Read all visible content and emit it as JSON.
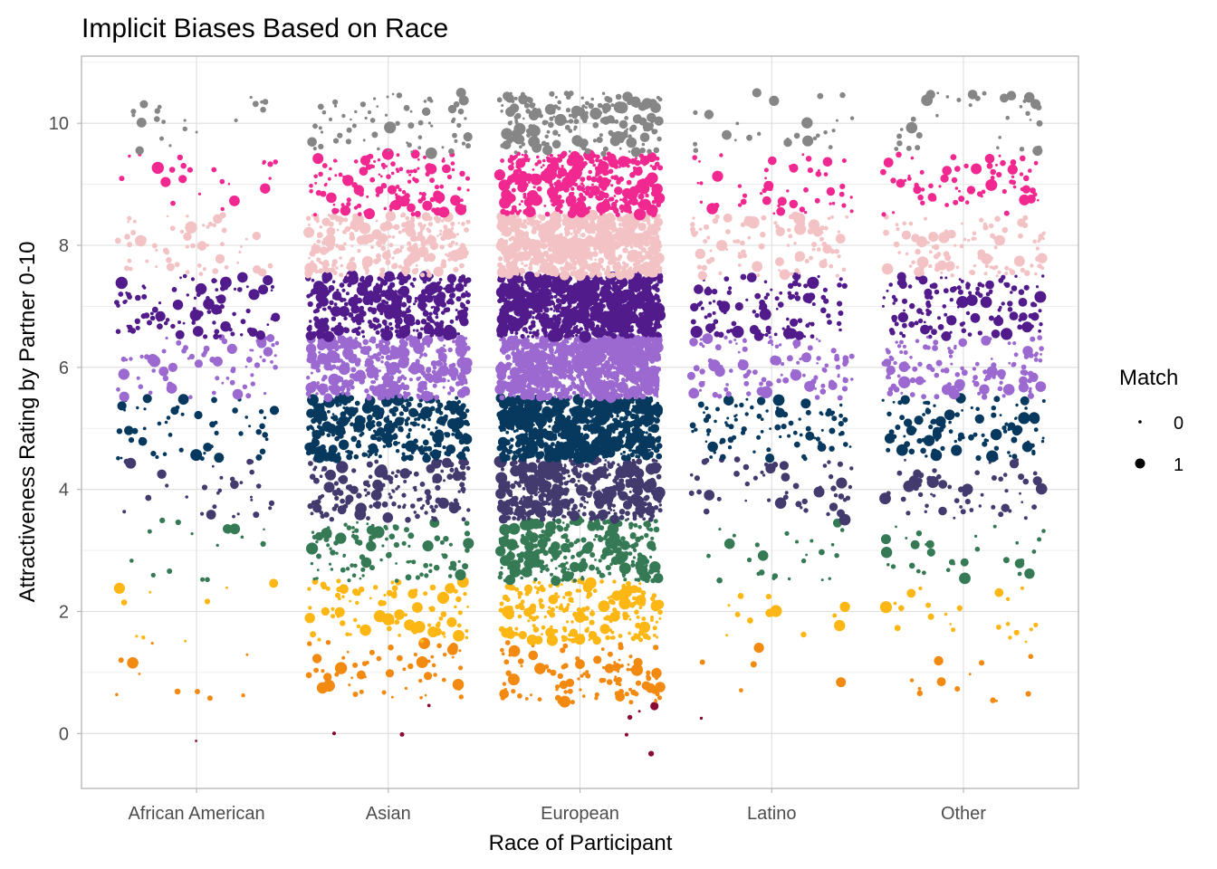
{
  "chart_data": {
    "type": "scatter",
    "title": "Implicit Biases Based on Race",
    "xlabel": "Race of Participant",
    "ylabel": "Attractiveness Rating by Partner 0-10",
    "categories": [
      "African American",
      "Asian",
      "European",
      "Latino",
      "Other"
    ],
    "y_ticks": [
      0,
      2,
      4,
      6,
      8,
      10
    ],
    "ylim": [
      -0.9,
      11.1
    ],
    "jitter": {
      "x_width": 0.42,
      "y_half_height": 0.5
    },
    "grid": true,
    "legend": {
      "title": "Match",
      "position": "right",
      "entries": [
        {
          "label": "0",
          "value": 0
        },
        {
          "label": "1",
          "value": 1
        }
      ]
    },
    "rating_colors": {
      "0": "#8b0a32",
      "1": "#f28a12",
      "2": "#fdb714",
      "3": "#357a55",
      "4": "#433a6e",
      "5": "#07395f",
      "6": "#9b69cf",
      "7": "#521b8c",
      "8": "#f3c2c4",
      "9": "#f0288f",
      "10": "#868686"
    },
    "counts_by_rating": {
      "African American": {
        "0": 1,
        "1": 10,
        "2": 10,
        "3": 15,
        "4": 30,
        "5": 55,
        "6": 70,
        "7": 95,
        "8": 55,
        "9": 25,
        "10": 20
      },
      "Asian": {
        "0": 3,
        "1": 60,
        "2": 100,
        "3": 110,
        "4": 170,
        "5": 320,
        "6": 380,
        "7": 360,
        "8": 260,
        "9": 150,
        "10": 70
      },
      "European": {
        "0": 5,
        "1": 110,
        "2": 220,
        "3": 300,
        "4": 450,
        "5": 700,
        "6": 850,
        "7": 850,
        "8": 700,
        "9": 400,
        "10": 220
      },
      "Latino": {
        "0": 1,
        "1": 5,
        "2": 12,
        "3": 25,
        "4": 50,
        "5": 90,
        "6": 110,
        "7": 110,
        "8": 90,
        "9": 50,
        "10": 25
      },
      "Other": {
        "0": 0,
        "1": 12,
        "2": 22,
        "3": 32,
        "4": 60,
        "5": 110,
        "6": 130,
        "7": 135,
        "8": 110,
        "9": 70,
        "10": 35
      }
    },
    "match_share": 0.17
  }
}
